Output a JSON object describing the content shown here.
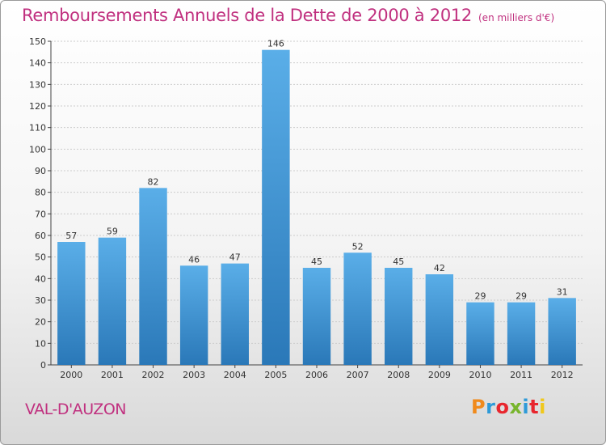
{
  "header": {
    "title": "Remboursements Annuels de la Dette de 2000 à 2012",
    "subtitle": "(en milliers d'€)"
  },
  "footer": {
    "place": "VAL-D'AUZON",
    "logo_text": "Proxiti",
    "logo_colors": [
      "#f08a1c",
      "#2e9ad8",
      "#e8262e",
      "#78b52d",
      "#2e9ad8",
      "#e8262e",
      "#f0c81c"
    ]
  },
  "colors": {
    "title": "#c0307f",
    "bar_top": "#5aaee8",
    "bar_bottom": "#2a78b8",
    "grid": "#cccccc",
    "axis": "#444444"
  },
  "chart_data": {
    "type": "bar",
    "title": "Remboursements Annuels de la Dette de 2000 à 2012",
    "subtitle": "(en milliers d'€)",
    "categories": [
      "2000",
      "2001",
      "2002",
      "2003",
      "2004",
      "2005",
      "2006",
      "2007",
      "2008",
      "2009",
      "2010",
      "2011",
      "2012"
    ],
    "values": [
      57,
      59,
      82,
      46,
      47,
      146,
      45,
      52,
      45,
      42,
      29,
      29,
      31
    ],
    "ylim": [
      0,
      150
    ],
    "ytick_step": 10,
    "grid": true,
    "legend": "none"
  }
}
